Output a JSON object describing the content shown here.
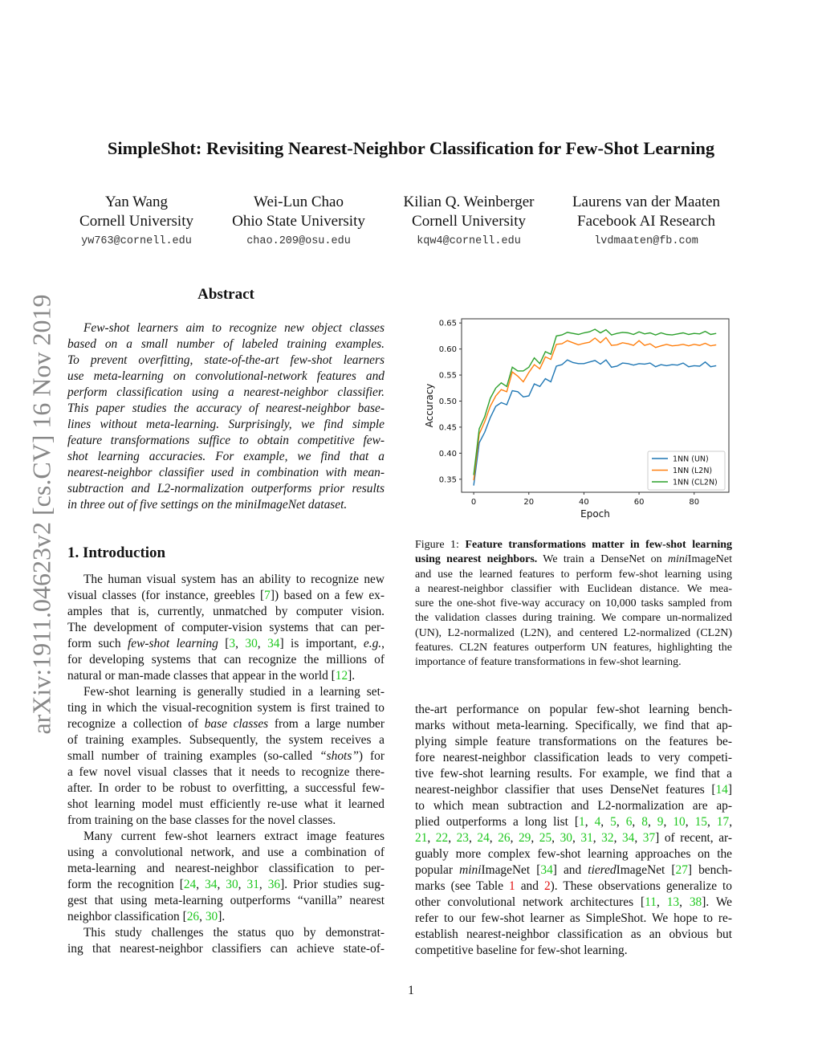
{
  "sidebar_stamp": "arXiv:1911.04623v2 [cs.CV] 16 Nov 2019",
  "title": "SimpleShot: Revisiting Nearest-Neighbor Classification for Few-Shot Learning",
  "authors": [
    {
      "name": "Yan Wang",
      "affiliation": "Cornell University",
      "email": "yw763@cornell.edu"
    },
    {
      "name": "Wei-Lun Chao",
      "affiliation": "Ohio State University",
      "email": "chao.209@osu.edu"
    },
    {
      "name": "Kilian Q. Weinberger",
      "affiliation": "Cornell University",
      "email": "kqw4@cornell.edu"
    },
    {
      "name": "Laurens van der Maaten",
      "affiliation": "Facebook AI Research",
      "email": "lvdmaaten@fb.com"
    }
  ],
  "abstract": {
    "heading": "Abstract",
    "paragraphs": [
      [
        "Few-shot learners aim to recognize new object classes",
        "based on a small number of labeled training examples.",
        "To prevent overfitting, state-of-the-art few-shot learners",
        "use meta-learning on convolutional-network features and",
        "perform classification using a nearest-neighbor classifier.",
        "This paper studies the accuracy of nearest-neighbor base-",
        "lines without meta-learning. Surprisingly, we find simple",
        "feature transformations suffice to obtain competitive few-",
        "shot learning accuracies. For example, we find that a",
        "nearest-neighbor classifier used in combination with mean-",
        "subtraction and L2-normalization outperforms prior results",
        "in three out of five settings on the miniImageNet dataset."
      ]
    ]
  },
  "introduction": {
    "heading": "1. Introduction",
    "paragraphs": [
      [
        "The human visual system has an ability to recognize new",
        [
          "visual classes (for instance, greebles [",
          {
            "t": "7",
            "s": "cite"
          },
          "]) based on a few ex-"
        ],
        "amples that is, currently, unmatched by computer vision.",
        "The development of computer-vision systems that can per-",
        [
          "form such ",
          {
            "t": "few-shot learning",
            "s": "i"
          },
          " [",
          {
            "t": "3",
            "s": "cite"
          },
          ", ",
          {
            "t": "30",
            "s": "cite"
          },
          ", ",
          {
            "t": "34",
            "s": "cite"
          },
          "] is important, ",
          {
            "t": "e.g.",
            "s": "i"
          },
          ","
        ],
        "for developing systems that can recognize the millions of",
        [
          "natural or man-made classes that appear in the world [",
          {
            "t": "12",
            "s": "cite"
          },
          "]."
        ]
      ],
      [
        "Few-shot learning is generally studied in a learning set-",
        "ting in which the visual-recognition system is first trained to",
        [
          "recognize a collection of ",
          {
            "t": "base classes",
            "s": "i"
          },
          " from a large number"
        ],
        "of training examples. Subsequently, the system receives a",
        [
          "small number of training examples (so-called ",
          {
            "t": "“shots”",
            "s": "i"
          },
          ") for"
        ],
        "a few novel visual classes that it needs to recognize there-",
        "after. In order to be robust to overfitting, a successful few-",
        "shot learning model must efficiently re-use what it learned",
        "from training on the base classes for the novel classes."
      ],
      [
        "Many current few-shot learners extract image features",
        "using a convolutional network, and use a combination of",
        "meta-learning and nearest-neighbor classification to per-",
        [
          "form the recognition [",
          {
            "t": "24",
            "s": "cite"
          },
          ", ",
          {
            "t": "34",
            "s": "cite"
          },
          ", ",
          {
            "t": "30",
            "s": "cite"
          },
          ", ",
          {
            "t": "31",
            "s": "cite"
          },
          ", ",
          {
            "t": "36",
            "s": "cite"
          },
          "]. Prior studies sug-"
        ],
        "gest that using meta-learning outperforms “vanilla” nearest",
        [
          "neighbor classification [",
          {
            "t": "26",
            "s": "cite"
          },
          ", ",
          {
            "t": "30",
            "s": "cite"
          },
          "]."
        ]
      ],
      [
        "This study challenges the status quo by demonstrat-",
        "ing that nearest-neighbor classifiers can achieve state-of-"
      ]
    ],
    "continuation": [
      [
        "the-art performance on popular few-shot learning bench-",
        "marks without meta-learning. Specifically, we find that ap-",
        "plying simple feature transformations on the features be-",
        "fore nearest-neighbor classification leads to very competi-",
        "tive few-shot learning results. For example, we find that a",
        [
          "nearest-neighbor classifier that uses DenseNet features [",
          {
            "t": "14",
            "s": "cite"
          },
          "]"
        ],
        "to which mean subtraction and L2-normalization are ap-",
        [
          "plied outperforms a long list [",
          {
            "t": "1",
            "s": "cite"
          },
          ", ",
          {
            "t": "4",
            "s": "cite"
          },
          ", ",
          {
            "t": "5",
            "s": "cite"
          },
          ", ",
          {
            "t": "6",
            "s": "cite"
          },
          ", ",
          {
            "t": "8",
            "s": "cite"
          },
          ", ",
          {
            "t": "9",
            "s": "cite"
          },
          ", ",
          {
            "t": "10",
            "s": "cite"
          },
          ", ",
          {
            "t": "15",
            "s": "cite"
          },
          ", ",
          {
            "t": "17",
            "s": "cite"
          },
          ","
        ],
        [
          {
            "t": "21",
            "s": "cite"
          },
          ", ",
          {
            "t": "22",
            "s": "cite"
          },
          ", ",
          {
            "t": "23",
            "s": "cite"
          },
          ", ",
          {
            "t": "24",
            "s": "cite"
          },
          ", ",
          {
            "t": "26",
            "s": "cite"
          },
          ", ",
          {
            "t": "29",
            "s": "cite"
          },
          ", ",
          {
            "t": "25",
            "s": "cite"
          },
          ", ",
          {
            "t": "30",
            "s": "cite"
          },
          ", ",
          {
            "t": "31",
            "s": "cite"
          },
          ", ",
          {
            "t": "32",
            "s": "cite"
          },
          ", ",
          {
            "t": "34",
            "s": "cite"
          },
          ", ",
          {
            "t": "37",
            "s": "cite"
          },
          "] of recent, ar-"
        ],
        "guably more complex few-shot learning approaches on the",
        [
          "popular ",
          {
            "t": "mini",
            "s": "i"
          },
          "ImageNet [",
          {
            "t": "34",
            "s": "cite"
          },
          "] and ",
          {
            "t": "tiered",
            "s": "i"
          },
          "ImageNet [",
          {
            "t": "27",
            "s": "cite"
          },
          "] bench-"
        ],
        [
          "marks (see Table ",
          {
            "t": "1",
            "s": "ref"
          },
          " and ",
          {
            "t": "2",
            "s": "ref"
          },
          "). These observations generalize to"
        ],
        [
          "other convolutional network architectures [",
          {
            "t": "11",
            "s": "cite"
          },
          ", ",
          {
            "t": "13",
            "s": "cite"
          },
          ", ",
          {
            "t": "38",
            "s": "cite"
          },
          "]. We"
        ],
        "refer to our few-shot learner as SimpleShot. We hope to re-",
        "establish nearest-neighbor classification as an obvious but",
        "competitive baseline for few-shot learning."
      ]
    ]
  },
  "figure_caption": [
    [
      [
        "Figure 1: ",
        {
          "t": "Feature transformations matter in few-shot learning",
          "s": "b"
        }
      ],
      [
        {
          "t": "using nearest neighbors.",
          "s": "b"
        },
        " We train a DenseNet on ",
        {
          "t": "mini",
          "s": "i"
        },
        "ImageNet"
      ],
      "and use the learned features to perform few-shot learning using",
      "a nearest-neighbor classifier with Euclidean distance.  We mea-",
      "sure the one-shot five-way accuracy on 10,000 tasks sampled from",
      "the validation classes during training. We compare un-normalized",
      "(UN), L2-normalized (L2N), and centered L2-normalized (CL2N)",
      "features. CL2N features outperform UN features, highlighting the",
      "importance of feature transformations in few-shot learning."
    ]
  ],
  "page_number": "1",
  "chart_data": {
    "type": "line",
    "xlabel": "Epoch",
    "ylabel": "Accuracy",
    "xlim": [
      -4.4,
      92.6
    ],
    "ylim": [
      0.325,
      0.658
    ],
    "xticks": [
      0,
      20,
      40,
      60,
      80
    ],
    "yticks": [
      0.35,
      0.4,
      0.45,
      0.5,
      0.55,
      0.6,
      0.65
    ],
    "grid": false,
    "legend_position": "bottom-right",
    "x": [
      0,
      2,
      4,
      6,
      8,
      10,
      12,
      14,
      16,
      18,
      20,
      22,
      24,
      26,
      28,
      30,
      32,
      34,
      36,
      38,
      40,
      42,
      44,
      46,
      48,
      50,
      52,
      54,
      56,
      58,
      60,
      62,
      64,
      66,
      68,
      70,
      72,
      74,
      76,
      78,
      80,
      82,
      84,
      86,
      88
    ],
    "series": [
      {
        "name": "1NN (UN)",
        "color": "#1f77b4",
        "values": [
          0.338,
          0.42,
          0.44,
          0.468,
          0.49,
          0.497,
          0.493,
          0.52,
          0.518,
          0.508,
          0.51,
          0.533,
          0.528,
          0.543,
          0.537,
          0.567,
          0.57,
          0.579,
          0.574,
          0.572,
          0.572,
          0.575,
          0.578,
          0.571,
          0.579,
          0.565,
          0.567,
          0.573,
          0.572,
          0.569,
          0.572,
          0.571,
          0.573,
          0.566,
          0.57,
          0.568,
          0.57,
          0.569,
          0.573,
          0.566,
          0.568,
          0.567,
          0.575,
          0.566,
          0.568
        ]
      },
      {
        "name": "1NN (L2N)",
        "color": "#ff7f0e",
        "values": [
          0.348,
          0.437,
          0.46,
          0.49,
          0.51,
          0.522,
          0.518,
          0.556,
          0.548,
          0.537,
          0.555,
          0.57,
          0.562,
          0.585,
          0.58,
          0.609,
          0.61,
          0.616,
          0.612,
          0.608,
          0.611,
          0.613,
          0.621,
          0.612,
          0.622,
          0.607,
          0.608,
          0.612,
          0.61,
          0.607,
          0.616,
          0.607,
          0.61,
          0.603,
          0.606,
          0.609,
          0.606,
          0.607,
          0.609,
          0.606,
          0.609,
          0.607,
          0.611,
          0.606,
          0.608
        ]
      },
      {
        "name": "1NN (CL2N)",
        "color": "#2ca02c",
        "values": [
          0.358,
          0.447,
          0.47,
          0.505,
          0.525,
          0.535,
          0.528,
          0.565,
          0.558,
          0.558,
          0.565,
          0.583,
          0.572,
          0.595,
          0.59,
          0.625,
          0.627,
          0.632,
          0.63,
          0.628,
          0.631,
          0.633,
          0.638,
          0.631,
          0.637,
          0.627,
          0.63,
          0.632,
          0.631,
          0.628,
          0.633,
          0.629,
          0.631,
          0.627,
          0.631,
          0.628,
          0.627,
          0.629,
          0.631,
          0.628,
          0.63,
          0.629,
          0.634,
          0.628,
          0.63
        ]
      }
    ]
  }
}
